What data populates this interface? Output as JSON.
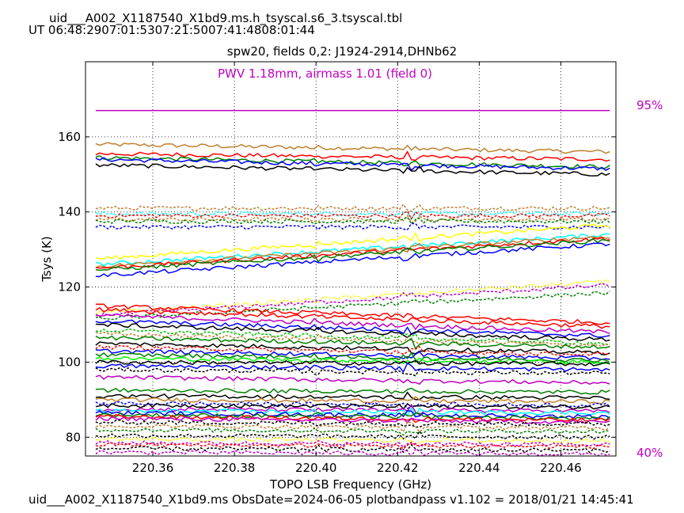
{
  "header": {
    "title": "uid___A002_X1187540_X1bd9.ms.h_tsyscal.s6_3.tsyscal.tbl",
    "ut_line": "UT 06:48:2907:01:5307:21:5007:41:4808:01:44"
  },
  "footer": {
    "text": "uid___A002_X1187540_X1bd9.ms  ObsDate=2024-06-05   plotbandpass v1.102 = 2018/01/21 14:45:41"
  },
  "colors": {
    "palette": [
      "#000000",
      "#ff0000",
      "#0000ff",
      "#008000",
      "#00ffff",
      "#c08030",
      "#ffff00",
      "#c000c0",
      "#00c000"
    ],
    "annotation": "#c000c0"
  },
  "chart_data": {
    "type": "line",
    "title": "spw20,  fields 0,2: J1924-2914,DHNb62",
    "annotation": "PWV 1.18mm, airmass 1.01 (field 0)",
    "xlabel": "TOPO LSB Frequency (GHz)",
    "ylabel": "Tsys (K)",
    "xlim": [
      220.3435,
      220.4735
    ],
    "ylim": [
      75,
      180
    ],
    "xticks": [
      220.36,
      220.38,
      220.4,
      220.42,
      220.44,
      220.46
    ],
    "xtick_labels": [
      "220.36",
      "220.38",
      "220.40",
      "220.42",
      "220.44",
      "220.46"
    ],
    "yticks": [
      80,
      100,
      120,
      140,
      160
    ],
    "ytick_labels": [
      "80",
      "100",
      "120",
      "140",
      "160"
    ],
    "grid": true,
    "x_range": [
      220.346,
      220.472
    ],
    "atm_line": {
      "y": 167,
      "color": "#c000c0"
    },
    "pct_high_label": "95%",
    "pct_low_label": "40%",
    "series": [
      {
        "color": "#c08030",
        "style": "solid",
        "y0": 158,
        "y1": 156
      },
      {
        "color": "#ff0000",
        "style": "solid",
        "y0": 155.5,
        "y1": 154
      },
      {
        "color": "#008000",
        "style": "solid",
        "y0": 154.5,
        "y1": 152
      },
      {
        "color": "#0000ff",
        "style": "solid",
        "y0": 154,
        "y1": 151.5
      },
      {
        "color": "#000000",
        "style": "solid",
        "y0": 152.5,
        "y1": 150
      },
      {
        "color": "#c08030",
        "style": "dashed",
        "y0": 141,
        "y1": 141
      },
      {
        "color": "#00ffff",
        "style": "dashed",
        "y0": 139.5,
        "y1": 139.5
      },
      {
        "color": "#ff0000",
        "style": "dashed",
        "y0": 139,
        "y1": 139
      },
      {
        "color": "#c08030",
        "style": "dashed",
        "y0": 138,
        "y1": 138
      },
      {
        "color": "#008000",
        "style": "dashed",
        "y0": 137.5,
        "y1": 137.5
      },
      {
        "color": "#0000ff",
        "style": "dashed",
        "y0": 136,
        "y1": 136
      },
      {
        "color": "#ffff00",
        "style": "solid",
        "y0": 127.5,
        "y1": 136.5
      },
      {
        "color": "#00ffff",
        "style": "solid",
        "y0": 126,
        "y1": 134
      },
      {
        "color": "#c08030",
        "style": "solid",
        "y0": 125.5,
        "y1": 133.5
      },
      {
        "color": "#ff0000",
        "style": "solid",
        "y0": 125,
        "y1": 133
      },
      {
        "color": "#008000",
        "style": "solid",
        "y0": 124.5,
        "y1": 132.5
      },
      {
        "color": "#0000ff",
        "style": "solid",
        "y0": 123,
        "y1": 131.5
      },
      {
        "color": "#ffff00",
        "style": "dashed",
        "y0": 113,
        "y1": 121.5
      },
      {
        "color": "#c000c0",
        "style": "dashed",
        "y0": 112.5,
        "y1": 120.5
      },
      {
        "color": "#008000",
        "style": "dashed",
        "y0": 111.5,
        "y1": 118.5
      },
      {
        "color": "#ff0000",
        "style": "solid",
        "y0": 115,
        "y1": 110.5
      },
      {
        "color": "#ff0000",
        "style": "solid",
        "y0": 114,
        "y1": 109.5
      },
      {
        "color": "#c000c0",
        "style": "solid",
        "y0": 112.5,
        "y1": 108
      },
      {
        "color": "#0000ff",
        "style": "solid",
        "y0": 111,
        "y1": 107
      },
      {
        "color": "#000000",
        "style": "solid",
        "y0": 110,
        "y1": 106
      },
      {
        "color": "#00c000",
        "style": "dashed",
        "y0": 108.5,
        "y1": 105
      },
      {
        "color": "#c08030",
        "style": "dashed",
        "y0": 107.5,
        "y1": 104.5
      },
      {
        "color": "#008000",
        "style": "solid",
        "y0": 106.5,
        "y1": 104
      },
      {
        "color": "#000000",
        "style": "solid",
        "y0": 105,
        "y1": 102.5
      },
      {
        "color": "#ff0000",
        "style": "dashed",
        "y0": 104,
        "y1": 102
      },
      {
        "color": "#0000ff",
        "style": "solid",
        "y0": 103,
        "y1": 101
      },
      {
        "color": "#008000",
        "style": "solid",
        "y0": 102,
        "y1": 100.5
      },
      {
        "color": "#00ff00",
        "style": "solid",
        "y0": 101,
        "y1": 100
      },
      {
        "color": "#000000",
        "style": "solid",
        "y0": 100,
        "y1": 99.5
      },
      {
        "color": "#0000ff",
        "style": "solid",
        "y0": 99,
        "y1": 98
      },
      {
        "color": "#000000",
        "style": "dashed",
        "y0": 98,
        "y1": 97
      },
      {
        "color": "#c000c0",
        "style": "solid",
        "y0": 96,
        "y1": 94.5
      },
      {
        "color": "#008000",
        "style": "solid",
        "y0": 92.5,
        "y1": 92
      },
      {
        "color": "#000000",
        "style": "solid",
        "y0": 91,
        "y1": 90.5
      },
      {
        "color": "#c08030",
        "style": "solid",
        "y0": 90,
        "y1": 89.5
      },
      {
        "color": "#0000ff",
        "style": "dashed",
        "y0": 89,
        "y1": 88.5
      },
      {
        "color": "#000000",
        "style": "solid",
        "y0": 88.5,
        "y1": 88
      },
      {
        "color": "#c000c0",
        "style": "solid",
        "y0": 87.5,
        "y1": 87
      },
      {
        "color": "#00ffff",
        "style": "solid",
        "y0": 87,
        "y1": 86.5
      },
      {
        "color": "#0000ff",
        "style": "solid",
        "y0": 86.5,
        "y1": 85.5
      },
      {
        "color": "#008000",
        "style": "solid",
        "y0": 86,
        "y1": 85
      },
      {
        "color": "#ff0000",
        "style": "solid",
        "y0": 85.5,
        "y1": 84.5
      },
      {
        "color": "#c000c0",
        "style": "solid",
        "y0": 85,
        "y1": 84
      },
      {
        "color": "#000000",
        "style": "dashed",
        "y0": 84,
        "y1": 83.5
      },
      {
        "color": "#c08030",
        "style": "dashed",
        "y0": 83,
        "y1": 82.5
      },
      {
        "color": "#008000",
        "style": "dashed",
        "y0": 82,
        "y1": 81.5
      },
      {
        "color": "#000000",
        "style": "dashed",
        "y0": 80.5,
        "y1": 80
      },
      {
        "color": "#ffff00",
        "style": "dashed",
        "y0": 79.5,
        "y1": 79
      },
      {
        "color": "#c000c0",
        "style": "dashed",
        "y0": 78.5,
        "y1": 78
      },
      {
        "color": "#ff0000",
        "style": "dashed",
        "y0": 78,
        "y1": 77.5
      },
      {
        "color": "#000000",
        "style": "dashed",
        "y0": 77,
        "y1": 76.5
      },
      {
        "color": "#c000c0",
        "style": "dashed",
        "y0": 76,
        "y1": 75.5
      }
    ]
  }
}
